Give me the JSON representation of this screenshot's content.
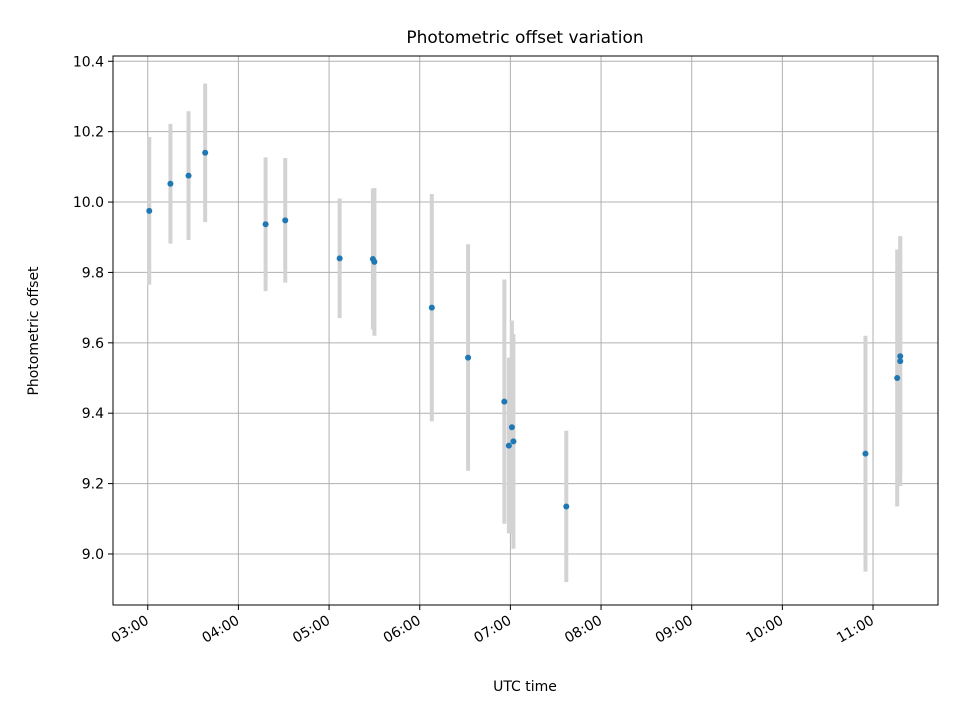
{
  "chart_data": {
    "type": "scatter",
    "title": "Photometric offset variation",
    "xlabel": "UTC time",
    "ylabel": "Photometric offset",
    "xlim": [
      "02:37",
      "11:43"
    ],
    "ylim": [
      8.855,
      10.415
    ],
    "grid": true,
    "x_ticks": [
      "03:00",
      "04:00",
      "05:00",
      "06:00",
      "07:00",
      "08:00",
      "09:00",
      "10:00",
      "11:00"
    ],
    "y_ticks": [
      "9.0",
      "9.2",
      "9.4",
      "9.6",
      "9.8",
      "10.0",
      "10.2",
      "10.4"
    ],
    "marker_color": "#1f77b4",
    "errorbar_color": "#d3d3d3",
    "points": [
      {
        "x": "03:01",
        "y": 9.975,
        "err": 0.21
      },
      {
        "x": "03:15",
        "y": 10.052,
        "err": 0.17
      },
      {
        "x": "03:27",
        "y": 10.075,
        "err": 0.183
      },
      {
        "x": "03:38",
        "y": 10.14,
        "err": 0.197
      },
      {
        "x": "04:18",
        "y": 9.937,
        "err": 0.19
      },
      {
        "x": "04:31",
        "y": 9.948,
        "err": 0.177
      },
      {
        "x": "05:07",
        "y": 9.84,
        "err": 0.17
      },
      {
        "x": "05:29",
        "y": 9.838,
        "err": 0.2
      },
      {
        "x": "05:30",
        "y": 9.83,
        "err": 0.21
      },
      {
        "x": "06:08",
        "y": 9.7,
        "err": 0.323
      },
      {
        "x": "06:32",
        "y": 9.558,
        "err": 0.322
      },
      {
        "x": "06:56",
        "y": 9.433,
        "err": 0.347
      },
      {
        "x": "06:59",
        "y": 9.308,
        "err": 0.25
      },
      {
        "x": "07:01",
        "y": 9.36,
        "err": 0.303
      },
      {
        "x": "07:02",
        "y": 9.32,
        "err": 0.305
      },
      {
        "x": "07:37",
        "y": 9.135,
        "err": 0.215
      },
      {
        "x": "10:55",
        "y": 9.285,
        "err": 0.335
      },
      {
        "x": "11:16",
        "y": 9.5,
        "err": 0.365
      },
      {
        "x": "11:18",
        "y": 9.562,
        "err": 0.34
      },
      {
        "x": "11:18",
        "y": 9.548,
        "err": 0.355
      }
    ]
  }
}
